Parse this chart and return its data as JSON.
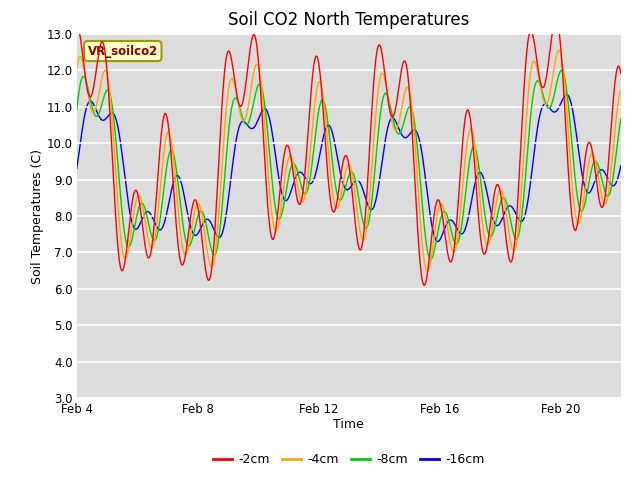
{
  "title": "Soil CO2 North Temperatures",
  "xlabel": "Time",
  "ylabel": "Soil Temperatures (C)",
  "ylim": [
    3.0,
    13.0
  ],
  "yticks": [
    3.0,
    4.0,
    5.0,
    6.0,
    7.0,
    8.0,
    9.0,
    10.0,
    11.0,
    12.0,
    13.0
  ],
  "bg_color": "#ffffff",
  "plot_bg_color": "#dcdcdc",
  "legend_label": "VR_soilco2",
  "series_colors": {
    "-2cm": "#ff0000",
    "-4cm": "#ffa500",
    "-8cm": "#00cc00",
    "-16cm": "#0000ff"
  },
  "x_tick_labels": [
    "Feb 4",
    "Feb 8",
    "Feb 12",
    "Feb 16",
    "Feb 20"
  ],
  "x_tick_positions": [
    4,
    8,
    12,
    16,
    20
  ],
  "x_range": [
    4,
    22
  ],
  "title_fontsize": 12,
  "label_fontsize": 9,
  "tick_fontsize": 8.5
}
